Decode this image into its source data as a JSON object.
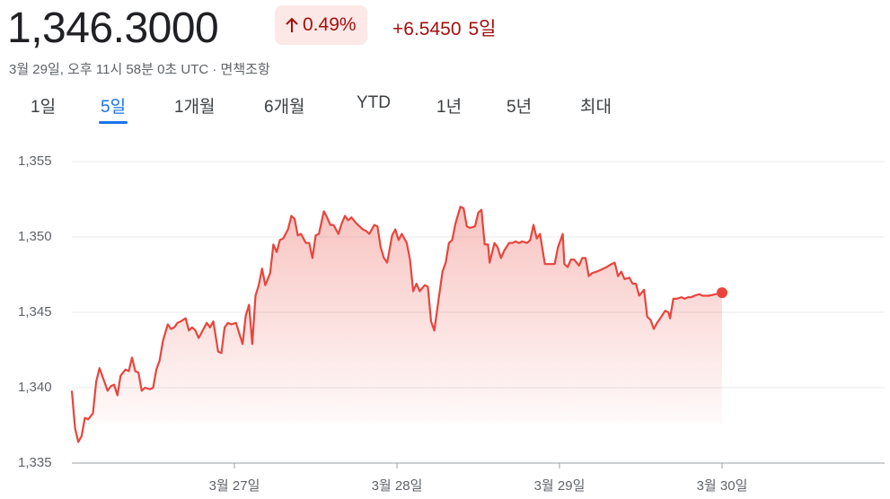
{
  "header": {
    "price": "1,346.3000",
    "change_percent": "0.49%",
    "change": "+6.5450",
    "period": "5일",
    "timestamp": "3월 29일, 오후 11시 58분 0초 UTC · 면책조항"
  },
  "tabs": {
    "items": [
      "1일",
      "5일",
      "1개월",
      "6개월",
      "YTD",
      "1년",
      "5년",
      "최대"
    ],
    "active": 1
  },
  "chart_data": {
    "type": "line",
    "color": "#e8453c",
    "grid": true,
    "xlim": [
      26,
      31
    ],
    "ylim": [
      1335,
      1355
    ],
    "xticks": [
      {
        "value": 27,
        "label": "3월 27일"
      },
      {
        "value": 28,
        "label": "3월 28일"
      },
      {
        "value": 29,
        "label": "3월 29일"
      },
      {
        "value": 30,
        "label": "3월 30일"
      }
    ],
    "yticks": [
      {
        "value": 1335,
        "label": "1,335"
      },
      {
        "value": 1340,
        "label": "1,340"
      },
      {
        "value": 1345,
        "label": "1,345"
      },
      {
        "value": 1350,
        "label": "1,350"
      },
      {
        "value": 1355,
        "label": "1,355"
      }
    ],
    "x": [
      26.0,
      26.02,
      26.04,
      26.06,
      26.08,
      26.1,
      26.13,
      26.15,
      26.17,
      26.19,
      26.22,
      26.24,
      26.26,
      26.28,
      26.3,
      26.33,
      26.35,
      26.37,
      26.39,
      26.41,
      26.43,
      26.45,
      26.48,
      26.5,
      26.52,
      26.54,
      26.56,
      26.59,
      26.61,
      26.63,
      26.65,
      26.67,
      26.7,
      26.72,
      26.74,
      26.76,
      26.78,
      26.81,
      26.83,
      26.85,
      26.87,
      26.9,
      26.92,
      26.94,
      26.96,
      26.98,
      27.01,
      27.03,
      27.05,
      27.07,
      27.09,
      27.11,
      27.13,
      27.15,
      27.17,
      27.19,
      27.22,
      27.24,
      27.26,
      27.28,
      27.3,
      27.33,
      27.35,
      27.37,
      27.39,
      27.41,
      27.44,
      27.46,
      27.48,
      27.5,
      27.52,
      27.55,
      27.57,
      27.59,
      27.61,
      27.64,
      27.66,
      27.68,
      27.7,
      27.72,
      27.75,
      27.77,
      27.79,
      27.81,
      27.83,
      27.86,
      27.88,
      27.9,
      27.92,
      27.94,
      27.97,
      27.99,
      28.01,
      28.03,
      28.06,
      28.08,
      28.1,
      28.12,
      28.14,
      28.17,
      28.19,
      28.21,
      28.23,
      28.25,
      28.28,
      28.3,
      28.32,
      28.34,
      28.36,
      28.39,
      28.41,
      28.43,
      28.45,
      28.48,
      28.5,
      28.52,
      28.54,
      28.56,
      28.57,
      28.6,
      28.62,
      28.64,
      28.66,
      28.69,
      28.71,
      28.73,
      28.75,
      28.77,
      28.8,
      28.82,
      28.84,
      28.86,
      28.88,
      28.91,
      28.97,
      28.99,
      29.02,
      29.03,
      29.05,
      29.07,
      29.09,
      29.12,
      29.14,
      29.16,
      29.18,
      29.2,
      29.23,
      29.25,
      29.27,
      29.29,
      29.32,
      29.34,
      29.36,
      29.38,
      29.4,
      29.43,
      29.45,
      29.47,
      29.49,
      29.52,
      29.54,
      29.56,
      29.58,
      29.6,
      29.62,
      29.65,
      29.67,
      29.68,
      29.7,
      29.72,
      29.75,
      29.77,
      29.79,
      29.81,
      29.83,
      29.86,
      29.88,
      29.92,
      30.0
    ],
    "values": [
      1339.8,
      1337.3,
      1336.4,
      1336.8,
      1338.0,
      1337.9,
      1338.3,
      1340.4,
      1341.3,
      1340.7,
      1339.8,
      1340.1,
      1340.2,
      1339.5,
      1340.8,
      1341.2,
      1341.1,
      1342.0,
      1341.1,
      1341.0,
      1339.8,
      1340.0,
      1339.9,
      1340.0,
      1341.2,
      1341.8,
      1343.1,
      1344.2,
      1343.9,
      1344.0,
      1344.3,
      1344.4,
      1344.6,
      1343.8,
      1344.0,
      1343.8,
      1343.3,
      1343.9,
      1344.3,
      1344.0,
      1344.4,
      1342.4,
      1342.3,
      1344.0,
      1344.3,
      1344.2,
      1344.3,
      1343.6,
      1342.9,
      1344.8,
      1345.5,
      1342.9,
      1346.1,
      1346.8,
      1347.9,
      1346.8,
      1347.6,
      1349.5,
      1349.0,
      1349.8,
      1349.9,
      1350.5,
      1351.4,
      1351.2,
      1350.1,
      1350.2,
      1349.6,
      1349.6,
      1348.6,
      1350.1,
      1350.2,
      1351.7,
      1351.3,
      1350.8,
      1350.8,
      1350.2,
      1350.9,
      1351.4,
      1351.1,
      1351.3,
      1350.9,
      1350.7,
      1350.5,
      1350.4,
      1350.2,
      1350.8,
      1350.7,
      1349.3,
      1348.6,
      1348.3,
      1350.1,
      1350.5,
      1349.8,
      1350.2,
      1349.6,
      1348.5,
      1346.4,
      1346.9,
      1346.4,
      1346.8,
      1346.7,
      1344.4,
      1343.8,
      1345.4,
      1347.7,
      1348.3,
      1349.6,
      1349.8,
      1350.9,
      1352.0,
      1351.9,
      1350.7,
      1350.6,
      1350.7,
      1351.6,
      1351.8,
      1349.5,
      1349.5,
      1348.3,
      1349.6,
      1349.3,
      1348.6,
      1349.1,
      1349.6,
      1349.6,
      1349.7,
      1349.6,
      1349.7,
      1349.6,
      1349.8,
      1350.8,
      1349.9,
      1350.2,
      1348.2,
      1348.2,
      1349.3,
      1350.2,
      1348.2,
      1348.0,
      1348.5,
      1348.5,
      1348.1,
      1348.6,
      1348.6,
      1347.4,
      1347.6,
      1347.7,
      1347.8,
      1347.9,
      1348.0,
      1348.2,
      1348.3,
      1347.4,
      1347.7,
      1347.2,
      1347.3,
      1346.9,
      1346.9,
      1346.1,
      1346.5,
      1344.7,
      1344.5,
      1343.9,
      1344.3,
      1344.6,
      1345.1,
      1345.0,
      1344.6,
      1345.9,
      1345.9,
      1346.0,
      1345.9,
      1346.0,
      1346.0,
      1346.1,
      1346.2,
      1346.1,
      1346.1,
      1346.3
    ]
  }
}
